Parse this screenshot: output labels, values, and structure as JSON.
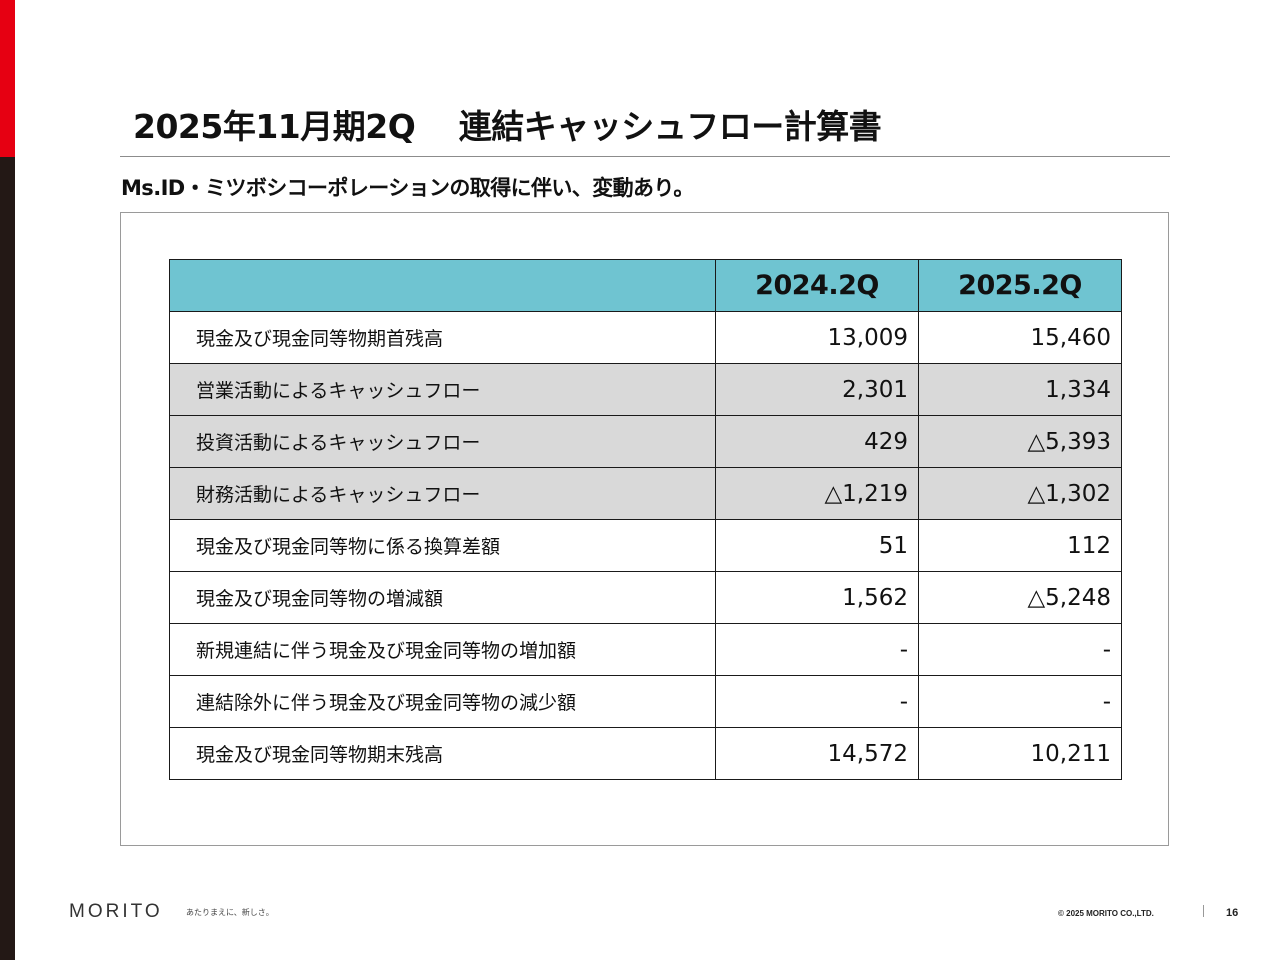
{
  "slide": {
    "title": "2025年11月期2Q　 連結キャッシュフロー計算書",
    "subtitle": "Ms.ID・ミツボシコーポレーションの取得に伴い、変動あり。"
  },
  "table": {
    "columns": [
      "",
      "2024.2Q",
      "2025.2Q"
    ],
    "rows": [
      {
        "label": "現金及び現金同等物期首残高",
        "v2024": "13,009",
        "v2025": "15,460",
        "shaded": false
      },
      {
        "label": "営業活動によるキャッシュフロー",
        "v2024": "2,301",
        "v2025": "1,334",
        "shaded": true
      },
      {
        "label": "投資活動によるキャッシュフロー",
        "v2024": "429",
        "v2025": "△5,393",
        "shaded": true
      },
      {
        "label": "財務活動によるキャッシュフロー",
        "v2024": "△1,219",
        "v2025": "△1,302",
        "shaded": true
      },
      {
        "label": "現金及び現金同等物に係る換算差額",
        "v2024": "51",
        "v2025": "112",
        "shaded": false
      },
      {
        "label": "現金及び現金同等物の増減額",
        "v2024": "1,562",
        "v2025": "△5,248",
        "shaded": false
      },
      {
        "label": "新規連結に伴う現金及び現金同等物の増加額",
        "v2024": "-",
        "v2025": "-",
        "shaded": false
      },
      {
        "label": "連結除外に伴う現金及び現金同等物の減少額",
        "v2024": "-",
        "v2025": "-",
        "shaded": false
      },
      {
        "label": "現金及び現金同等物期末残高",
        "v2024": "14,572",
        "v2025": "10,211",
        "shaded": false
      }
    ]
  },
  "footer": {
    "logo": "MORITO",
    "tagline": "あたりまえに、新しさ。",
    "copyright": "© 2025 MORITO CO.,LTD.",
    "page_number": "16"
  },
  "colors": {
    "accent_red": "#e60012",
    "side_dark": "#231815",
    "header_teal": "#6fc4d1",
    "row_shade": "#d9d9d9"
  }
}
